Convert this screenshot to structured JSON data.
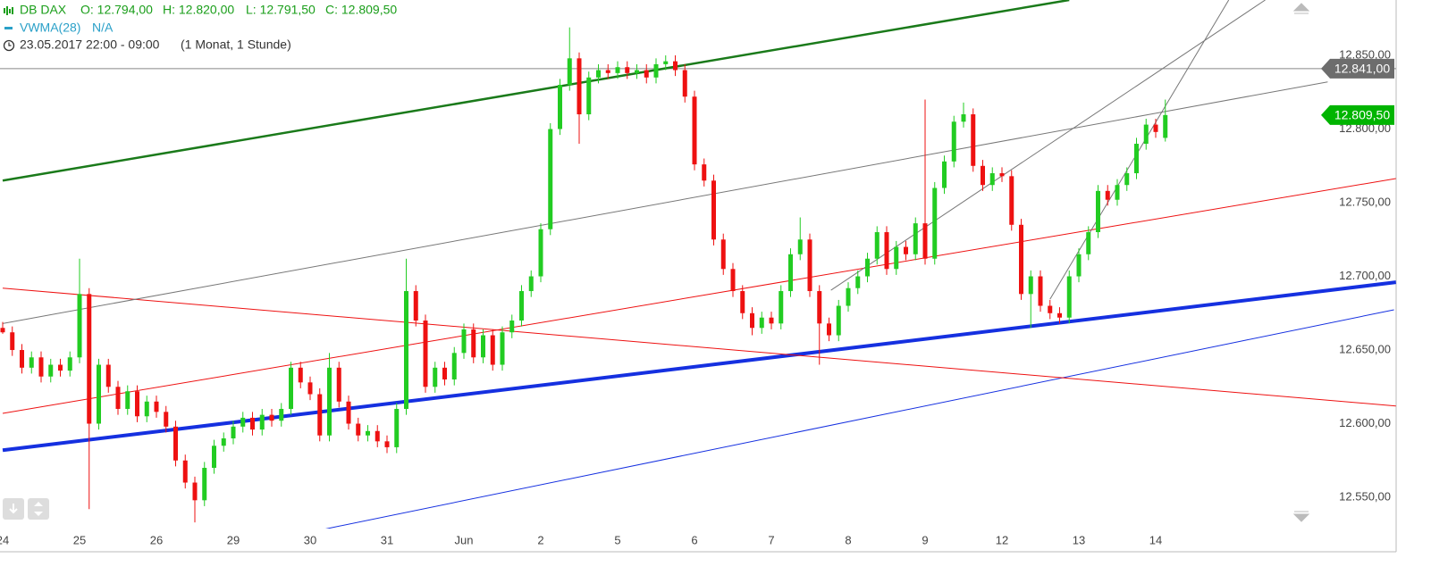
{
  "chart_data": {
    "type": "candlestick",
    "title": "DB DAX",
    "ohlc_labels": [
      "O: 12.794,00",
      "H: 12.820,00",
      "L: 12.791,50",
      "C: 12.809,50"
    ],
    "indicator": "VWMA(28)",
    "indicator_value": "N/A",
    "period": "23.05.2017 22:00 - 09:00",
    "range_label": "(1 Monat, 1 Stunde)",
    "up_color": "#22cc22",
    "down_color": "#ee1111",
    "categories": [
      "24",
      null,
      null,
      null,
      null,
      null,
      null,
      null,
      "25",
      null,
      null,
      null,
      null,
      null,
      null,
      null,
      "26",
      null,
      null,
      null,
      null,
      null,
      null,
      null,
      "29",
      null,
      null,
      null,
      null,
      null,
      null,
      null,
      "30",
      null,
      null,
      null,
      null,
      null,
      null,
      null,
      "31",
      null,
      null,
      null,
      null,
      null,
      null,
      null,
      "Jun",
      null,
      null,
      null,
      null,
      null,
      null,
      null,
      "2",
      null,
      null,
      null,
      null,
      null,
      null,
      null,
      "5",
      null,
      null,
      null,
      null,
      null,
      null,
      null,
      "6",
      null,
      null,
      null,
      null,
      null,
      null,
      null,
      "7",
      null,
      null,
      null,
      null,
      null,
      null,
      null,
      "8",
      null,
      null,
      null,
      null,
      null,
      null,
      null,
      "9",
      null,
      null,
      null,
      null,
      null,
      null,
      null,
      "12",
      null,
      null,
      null,
      null,
      null,
      null,
      null,
      "13",
      null,
      null,
      null,
      null,
      null,
      null,
      null,
      "14",
      null
    ],
    "open": [
      12665,
      12662,
      12650,
      12638,
      12645,
      12632,
      12640,
      12636,
      12645,
      12688,
      12600,
      12640,
      12625,
      12610,
      12622,
      12605,
      12615,
      12608,
      12598,
      12575,
      12560,
      12548,
      12570,
      12585,
      12590,
      12598,
      12604,
      12596,
      12606,
      12602,
      12610,
      12638,
      12628,
      12620,
      12592,
      12638,
      12615,
      12600,
      12592,
      12595,
      12588,
      12584,
      12610,
      12690,
      12670,
      12625,
      12638,
      12630,
      12648,
      12664,
      12645,
      12660,
      12640,
      12662,
      12670,
      12690,
      12700,
      12732,
      12800,
      12830,
      12848,
      12810,
      12835,
      12840,
      12838,
      12842,
      12838,
      12840,
      12835,
      12844,
      12846,
      12840,
      12822,
      12776,
      12765,
      12725,
      12705,
      12690,
      12675,
      12665,
      12672,
      12668,
      12690,
      12715,
      12725,
      12690,
      12668,
      12660,
      12680,
      12692,
      12700,
      12712,
      12730,
      12705,
      12720,
      12715,
      12736,
      12712,
      12760,
      12778,
      12805,
      12810,
      12775,
      12762,
      12770,
      12768,
      12735,
      12688,
      12700,
      12680,
      12675,
      12672,
      12700,
      12715,
      12730,
      12758,
      12752,
      12762,
      12770,
      12790,
      12803,
      12794
    ],
    "high": [
      12669,
      12666,
      12654,
      12649,
      12649,
      12644,
      12644,
      12649,
      12712,
      12692,
      12644,
      12644,
      12629,
      12626,
      12626,
      12619,
      12619,
      12612,
      12602,
      12579,
      12564,
      12574,
      12589,
      12594,
      12602,
      12608,
      12608,
      12610,
      12610,
      12614,
      12642,
      12642,
      12632,
      12624,
      12648,
      12642,
      12619,
      12604,
      12599,
      12599,
      12592,
      12614,
      12712,
      12694,
      12674,
      12642,
      12642,
      12652,
      12668,
      12668,
      12664,
      12664,
      12666,
      12674,
      12694,
      12704,
      12736,
      12804,
      12834,
      12869,
      12852,
      12839,
      12844,
      12844,
      12846,
      12846,
      12844,
      12844,
      12848,
      12850,
      12850,
      12844,
      12826,
      12780,
      12769,
      12729,
      12709,
      12694,
      12679,
      12676,
      12676,
      12694,
      12719,
      12740,
      12729,
      12694,
      12672,
      12684,
      12696,
      12704,
      12716,
      12734,
      12734,
      12724,
      12724,
      12740,
      12820,
      12764,
      12782,
      12809,
      12818,
      12814,
      12779,
      12774,
      12774,
      12772,
      12739,
      12704,
      12704,
      12684,
      12679,
      12704,
      12719,
      12734,
      12762,
      12762,
      12766,
      12774,
      12794,
      12807,
      12807,
      12820
    ],
    "low": [
      12661,
      12646,
      12634,
      12634,
      12628,
      12628,
      12632,
      12632,
      12641,
      12542,
      12596,
      12621,
      12606,
      12606,
      12601,
      12601,
      12604,
      12594,
      12571,
      12556,
      12533,
      12544,
      12566,
      12581,
      12586,
      12594,
      12592,
      12592,
      12598,
      12598,
      12606,
      12624,
      12616,
      12588,
      12588,
      12611,
      12596,
      12588,
      12588,
      12584,
      12580,
      12580,
      12606,
      12666,
      12621,
      12621,
      12626,
      12626,
      12644,
      12641,
      12641,
      12636,
      12636,
      12658,
      12666,
      12686,
      12696,
      12728,
      12796,
      12826,
      12790,
      12806,
      12831,
      12834,
      12834,
      12834,
      12834,
      12831,
      12831,
      12840,
      12836,
      12818,
      12772,
      12761,
      12721,
      12701,
      12686,
      12671,
      12660,
      12661,
      12664,
      12664,
      12686,
      12711,
      12686,
      12640,
      12656,
      12656,
      12676,
      12688,
      12696,
      12708,
      12701,
      12701,
      12711,
      12711,
      12708,
      12708,
      12756,
      12774,
      12801,
      12771,
      12758,
      12758,
      12764,
      12731,
      12684,
      12665,
      12676,
      12671,
      12668,
      12668,
      12696,
      12711,
      12726,
      12748,
      12748,
      12758,
      12766,
      12786,
      12794,
      12791.5
    ],
    "close": [
      12662,
      12650,
      12638,
      12645,
      12632,
      12640,
      12636,
      12645,
      12688,
      12600,
      12640,
      12625,
      12610,
      12622,
      12605,
      12615,
      12608,
      12598,
      12575,
      12560,
      12548,
      12570,
      12585,
      12590,
      12598,
      12604,
      12596,
      12606,
      12602,
      12610,
      12638,
      12628,
      12620,
      12592,
      12638,
      12615,
      12600,
      12592,
      12595,
      12588,
      12584,
      12610,
      12690,
      12670,
      12625,
      12638,
      12630,
      12648,
      12664,
      12645,
      12660,
      12640,
      12662,
      12670,
      12690,
      12700,
      12732,
      12800,
      12830,
      12848,
      12810,
      12835,
      12840,
      12838,
      12842,
      12838,
      12840,
      12835,
      12844,
      12846,
      12840,
      12822,
      12776,
      12765,
      12725,
      12705,
      12690,
      12675,
      12665,
      12672,
      12668,
      12690,
      12715,
      12725,
      12690,
      12668,
      12660,
      12680,
      12692,
      12700,
      12712,
      12730,
      12705,
      12720,
      12715,
      12736,
      12712,
      12760,
      12778,
      12805,
      12810,
      12775,
      12762,
      12770,
      12768,
      12735,
      12688,
      12700,
      12680,
      12675,
      12672,
      12700,
      12715,
      12730,
      12758,
      12752,
      12762,
      12770,
      12790,
      12803,
      12798,
      12809.5
    ],
    "ylim": [
      12528.8,
      12887.6
    ],
    "yticks": [
      {
        "value": 12550,
        "label": "12.550,00"
      },
      {
        "value": 12600,
        "label": "12.600,00"
      },
      {
        "value": 12650,
        "label": "12.650,00"
      },
      {
        "value": 12700,
        "label": "12.700,00"
      },
      {
        "value": 12750,
        "label": "12.750,00"
      },
      {
        "value": 12800,
        "label": "12.800,00"
      },
      {
        "value": 12850,
        "label": "12.850,00"
      }
    ],
    "price_markers": [
      {
        "value": 12841,
        "label": "12.841,00",
        "color": "#6d6d6d"
      },
      {
        "value": 12809.5,
        "label": "12.809,50",
        "color": "#00b400"
      }
    ],
    "trendlines": [
      {
        "color": "#1a7a1a",
        "width": 2.5,
        "x": [
          0,
          111
        ],
        "y": [
          12765,
          12887.6
        ]
      },
      {
        "color": "#1530e0",
        "width": 4,
        "x": [
          0,
          145
        ],
        "y": [
          12582,
          12696
        ]
      },
      {
        "color": "#1530e0",
        "width": 1,
        "x": [
          21.1,
          144.8
        ],
        "y": [
          12511.8,
          12677.3
        ]
      },
      {
        "color": "#ee1111",
        "width": 1,
        "x": [
          0,
          145
        ],
        "y": [
          12607,
          12766.4
        ]
      },
      {
        "color": "#ee1111",
        "width": 1,
        "x": [
          0,
          145
        ],
        "y": [
          12692,
          12612
        ]
      },
      {
        "color": "#777777",
        "width": 1,
        "x": [
          0,
          137.9
        ],
        "y": [
          12668,
          12832
        ]
      },
      {
        "color": "#777777",
        "width": 1,
        "x": [
          86.2,
          131.4
        ],
        "y": [
          12690.6,
          12887.6
        ]
      },
      {
        "color": "#777777",
        "width": 1,
        "x": [
          109,
          127.6
        ],
        "y": [
          12684.5,
          12887.6
        ]
      }
    ]
  }
}
